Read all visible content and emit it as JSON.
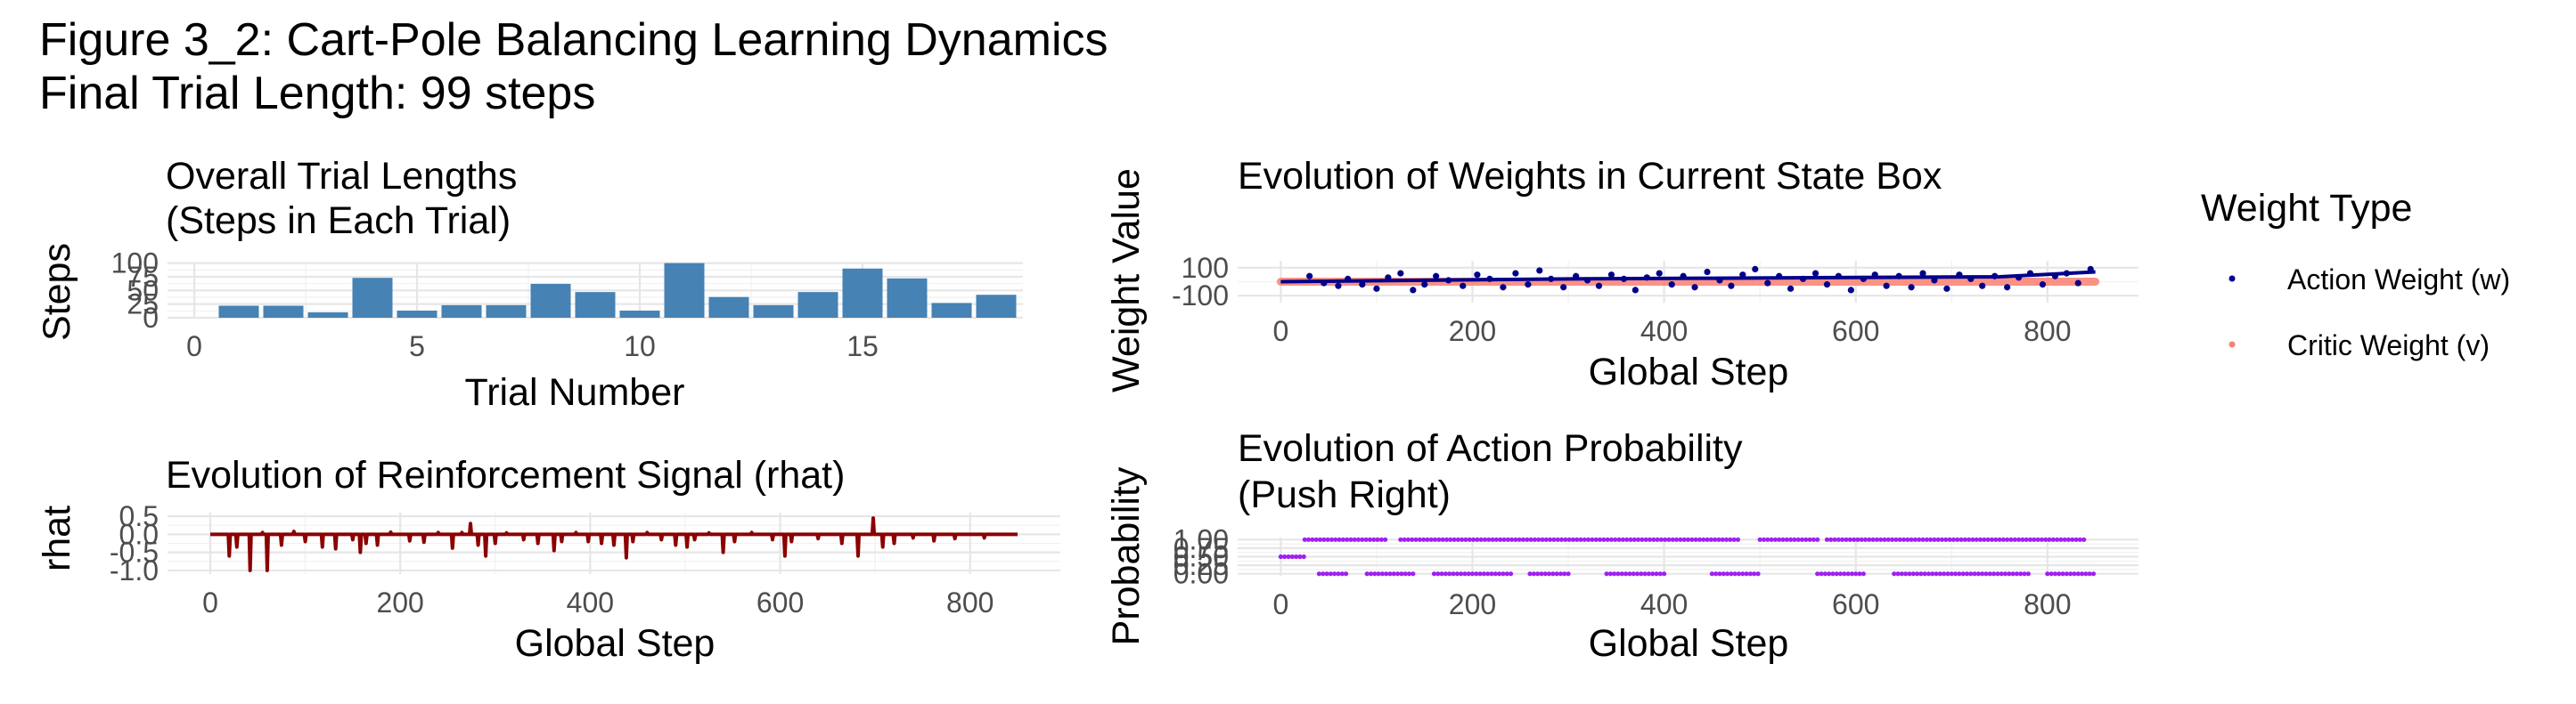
{
  "figure": {
    "title_line1": "Figure 3_2: Cart-Pole Balancing Learning Dynamics",
    "title_line2": "Final Trial Length: 99 steps"
  },
  "legend": {
    "title": "Weight Type",
    "items": [
      {
        "label": "Action Weight (w)",
        "color": "#00008B"
      },
      {
        "label": "Critic Weight (v)",
        "color": "#FA8072"
      }
    ]
  },
  "chart_data": [
    {
      "id": "trial_lengths",
      "type": "bar",
      "title_line1": "Overall Trial Lengths",
      "title_line2": "(Steps in Each Trial)",
      "xlabel": "Trial Number",
      "ylabel": "Steps",
      "color": "#4682B4",
      "xlim": [
        -0.6,
        18.6
      ],
      "ylim": [
        0,
        101
      ],
      "xticks": [
        0,
        5,
        10,
        15
      ],
      "yticks": [
        0,
        25,
        50,
        75,
        100
      ],
      "x": [
        1,
        2,
        3,
        4,
        5,
        6,
        7,
        8,
        9,
        10,
        11,
        12,
        13,
        14,
        15,
        16,
        17,
        18
      ],
      "values": [
        22,
        22,
        10,
        73,
        13,
        23,
        23,
        62,
        47,
        13,
        100,
        38,
        23,
        47,
        90,
        72,
        27,
        42
      ]
    },
    {
      "id": "rhat",
      "type": "line",
      "title": "Evolution of Reinforcement Signal (rhat)",
      "xlabel": "Global Step",
      "ylabel": "rhat",
      "color": "#8B0000",
      "xlim": [
        -45,
        895
      ],
      "ylim": [
        -1.1,
        0.6
      ],
      "xticks": [
        0,
        200,
        400,
        600,
        800
      ],
      "yticks": [
        0.5,
        0.0,
        -0.5,
        -1.0
      ],
      "ytick_labels": [
        "0.5",
        "0.0",
        "-0.5",
        "-1.0"
      ],
      "baseline": 0.0,
      "spikes": [
        [
          20,
          -0.6
        ],
        [
          28,
          -0.35
        ],
        [
          42,
          -1.0
        ],
        [
          55,
          0.05
        ],
        [
          60,
          -1.0
        ],
        [
          75,
          -0.3
        ],
        [
          88,
          0.08
        ],
        [
          100,
          -0.2
        ],
        [
          118,
          -0.35
        ],
        [
          132,
          -0.4
        ],
        [
          150,
          -0.15
        ],
        [
          158,
          -0.5
        ],
        [
          164,
          -0.25
        ],
        [
          176,
          -0.3
        ],
        [
          190,
          0.06
        ],
        [
          210,
          -0.18
        ],
        [
          225,
          -0.22
        ],
        [
          240,
          0.05
        ],
        [
          255,
          -0.38
        ],
        [
          265,
          0.05
        ],
        [
          274,
          0.3
        ],
        [
          282,
          -0.3
        ],
        [
          290,
          -0.6
        ],
        [
          300,
          -0.25
        ],
        [
          312,
          0.04
        ],
        [
          330,
          -0.15
        ],
        [
          345,
          -0.25
        ],
        [
          362,
          -0.45
        ],
        [
          370,
          -0.2
        ],
        [
          385,
          0.05
        ],
        [
          398,
          -0.2
        ],
        [
          412,
          -0.25
        ],
        [
          425,
          -0.3
        ],
        [
          438,
          -0.65
        ],
        [
          445,
          -0.2
        ],
        [
          460,
          0.05
        ],
        [
          475,
          -0.15
        ],
        [
          490,
          -0.3
        ],
        [
          502,
          -0.35
        ],
        [
          510,
          -0.15
        ],
        [
          525,
          0.04
        ],
        [
          540,
          -0.5
        ],
        [
          552,
          -0.2
        ],
        [
          570,
          0.05
        ],
        [
          592,
          -0.15
        ],
        [
          605,
          -0.6
        ],
        [
          612,
          -0.2
        ],
        [
          640,
          -0.12
        ],
        [
          665,
          -0.25
        ],
        [
          682,
          -0.6
        ],
        [
          698,
          0.45
        ],
        [
          708,
          -0.35
        ],
        [
          720,
          -0.25
        ],
        [
          740,
          -0.1
        ],
        [
          762,
          -0.18
        ],
        [
          784,
          -0.12
        ],
        [
          815,
          -0.1
        ]
      ]
    },
    {
      "id": "weights",
      "type": "scatter",
      "title": "Evolution of Weights in Current State Box",
      "xlabel": "Global Step",
      "ylabel": "Weight Value",
      "xlim": [
        -45,
        895
      ],
      "ylim": [
        -150,
        150
      ],
      "xticks": [
        0,
        200,
        400,
        600,
        800
      ],
      "yticks": [
        100,
        -100
      ],
      "series": [
        {
          "name": "Action Weight (w)",
          "color": "#00008B",
          "start": [
            0,
            0
          ],
          "points": [
            [
              30,
              40
            ],
            [
              45,
              -10
            ],
            [
              60,
              -30
            ],
            [
              70,
              20
            ],
            [
              85,
              -20
            ],
            [
              100,
              -50
            ],
            [
              112,
              30
            ],
            [
              125,
              60
            ],
            [
              138,
              -60
            ],
            [
              150,
              -20
            ],
            [
              162,
              40
            ],
            [
              175,
              10
            ],
            [
              190,
              -30
            ],
            [
              205,
              50
            ],
            [
              218,
              20
            ],
            [
              232,
              -40
            ],
            [
              245,
              60
            ],
            [
              258,
              -20
            ],
            [
              270,
              80
            ],
            [
              282,
              20
            ],
            [
              295,
              -40
            ],
            [
              308,
              40
            ],
            [
              320,
              10
            ],
            [
              332,
              -30
            ],
            [
              345,
              50
            ],
            [
              358,
              20
            ],
            [
              370,
              -60
            ],
            [
              382,
              30
            ],
            [
              395,
              60
            ],
            [
              408,
              -20
            ],
            [
              420,
              40
            ],
            [
              432,
              -40
            ],
            [
              445,
              70
            ],
            [
              458,
              10
            ],
            [
              470,
              -30
            ],
            [
              482,
              50
            ],
            [
              495,
              90
            ],
            [
              508,
              -10
            ],
            [
              520,
              40
            ],
            [
              532,
              -50
            ],
            [
              545,
              20
            ],
            [
              558,
              60
            ],
            [
              570,
              -20
            ],
            [
              582,
              40
            ],
            [
              595,
              -60
            ],
            [
              608,
              20
            ],
            [
              620,
              50
            ],
            [
              632,
              -30
            ],
            [
              645,
              40
            ],
            [
              658,
              -40
            ],
            [
              670,
              60
            ],
            [
              682,
              10
            ],
            [
              695,
              -50
            ],
            [
              708,
              50
            ],
            [
              720,
              20
            ],
            [
              732,
              -30
            ],
            [
              745,
              40
            ],
            [
              758,
              -40
            ],
            [
              770,
              30
            ],
            [
              782,
              60
            ],
            [
              795,
              -20
            ],
            [
              808,
              40
            ],
            [
              820,
              60
            ],
            [
              832,
              -10
            ],
            [
              845,
              90
            ]
          ],
          "trend": [
            [
              0,
              0
            ],
            [
              150,
              10
            ],
            [
              300,
              20
            ],
            [
              450,
              25
            ],
            [
              600,
              30
            ],
            [
              750,
              35
            ],
            [
              850,
              70
            ]
          ]
        },
        {
          "name": "Critic Weight (v)",
          "color": "#FA8072",
          "points": [
            [
              0,
              0
            ],
            [
              850,
              0
            ]
          ]
        }
      ]
    },
    {
      "id": "action_prob",
      "type": "scatter",
      "title_line1": "Evolution of Action Probability",
      "title_line2": "(Push Right)",
      "xlabel": "Global Step",
      "ylabel": "Probability",
      "color": "#A020F0",
      "xlim": [
        -45,
        895
      ],
      "ylim": [
        -0.06,
        1.06
      ],
      "xticks": [
        0,
        200,
        400,
        600,
        800
      ],
      "yticks": [
        1.0,
        0.75,
        0.5,
        0.25,
        0.0
      ],
      "ytick_labels": [
        "1.00",
        "0.75",
        "0.50",
        "0.25",
        "0.00"
      ],
      "levels": [
        {
          "y": 1.0,
          "ranges": [
            [
              25,
              110
            ],
            [
              125,
              480
            ],
            [
              500,
              560
            ],
            [
              570,
              840
            ]
          ]
        },
        {
          "y": 0.5,
          "ranges": [
            [
              0,
              25
            ]
          ]
        },
        {
          "y": 0.0,
          "ranges": [
            [
              40,
              70
            ],
            [
              90,
              140
            ],
            [
              160,
              240
            ],
            [
              260,
              300
            ],
            [
              340,
              400
            ],
            [
              450,
              500
            ],
            [
              560,
              610
            ],
            [
              640,
              780
            ],
            [
              800,
              850
            ]
          ]
        }
      ]
    }
  ]
}
